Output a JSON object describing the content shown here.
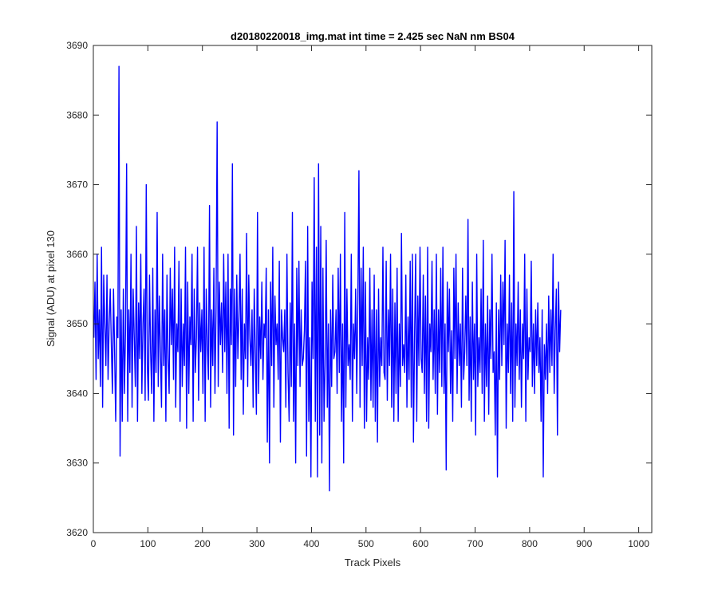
{
  "chart_data": {
    "type": "line",
    "title": "d20180220018_img.mat int time = 2.425 sec  NaN nm BS04",
    "xlabel": "Track Pixels",
    "ylabel": "Signal (ADU) at pixel 130",
    "xlim": [
      0,
      1024
    ],
    "ylim": [
      3620,
      3690
    ],
    "xticks": [
      "0",
      "100",
      "200",
      "300",
      "400",
      "500",
      "600",
      "700",
      "800",
      "900",
      "1000"
    ],
    "yticks": [
      "3620",
      "3630",
      "3640",
      "3650",
      "3660",
      "3670",
      "3680",
      "3690"
    ],
    "grid": false,
    "legend": "none",
    "series": [
      {
        "color": "#0000ff",
        "x_start": 1,
        "x_step": 2,
        "values": [
          3648,
          3656,
          3642,
          3660,
          3645,
          3652,
          3641,
          3661,
          3638,
          3657,
          3650,
          3644,
          3657,
          3642,
          3650,
          3655,
          3647,
          3640,
          3655,
          3646,
          3636,
          3651,
          3648,
          3687,
          3631,
          3652,
          3636,
          3655,
          3640,
          3649,
          3673,
          3636,
          3652,
          3643,
          3660,
          3638,
          3655,
          3648,
          3641,
          3664,
          3636,
          3653,
          3645,
          3660,
          3640,
          3650,
          3655,
          3639,
          3670,
          3644,
          3639,
          3657,
          3646,
          3640,
          3658,
          3636,
          3652,
          3643,
          3666,
          3641,
          3654,
          3646,
          3638,
          3660,
          3644,
          3652,
          3636,
          3657,
          3645,
          3640,
          3658,
          3647,
          3655,
          3642,
          3661,
          3638,
          3650,
          3646,
          3659,
          3636,
          3655,
          3641,
          3650,
          3644,
          3661,
          3635,
          3656,
          3640,
          3651,
          3647,
          3660,
          3636,
          3655,
          3643,
          3648,
          3661,
          3639,
          3653,
          3646,
          3652,
          3640,
          3661,
          3636,
          3655,
          3647,
          3642,
          3667,
          3638,
          3652,
          3644,
          3658,
          3640,
          3652,
          3679,
          3641,
          3656,
          3647,
          3653,
          3643,
          3660,
          3646,
          3656,
          3640,
          3660,
          3635,
          3655,
          3647,
          3673,
          3634,
          3655,
          3641,
          3657,
          3645,
          3651,
          3660,
          3642,
          3655,
          3637,
          3650,
          3645,
          3663,
          3641,
          3657,
          3648,
          3644,
          3652,
          3638,
          3655,
          3646,
          3637,
          3666,
          3640,
          3651,
          3645,
          3656,
          3642,
          3650,
          3648,
          3658,
          3633,
          3652,
          3630,
          3656,
          3644,
          3661,
          3638,
          3654,
          3647,
          3650,
          3642,
          3659,
          3633,
          3652,
          3648,
          3646,
          3652,
          3638,
          3660,
          3643,
          3636,
          3653,
          3641,
          3666,
          3636,
          3650,
          3630,
          3658,
          3644,
          3659,
          3641,
          3652,
          3644,
          3645,
          3649,
          3659,
          3631,
          3664,
          3636,
          3648,
          3628,
          3656,
          3645,
          3671,
          3636,
          3661,
          3628,
          3673,
          3634,
          3664,
          3630,
          3658,
          3636,
          3644,
          3662,
          3638,
          3650,
          3626,
          3652,
          3641,
          3657,
          3645,
          3646,
          3652,
          3640,
          3658,
          3643,
          3660,
          3636,
          3650,
          3630,
          3666,
          3638,
          3655,
          3644,
          3647,
          3642,
          3660,
          3636,
          3650,
          3645,
          3655,
          3640,
          3653,
          3672,
          3638,
          3658,
          3644,
          3661,
          3635,
          3656,
          3636,
          3648,
          3642,
          3658,
          3639,
          3652,
          3638,
          3657,
          3636,
          3652,
          3633,
          3655,
          3641,
          3648,
          3644,
          3661,
          3643,
          3642,
          3659,
          3639,
          3652,
          3644,
          3660,
          3638,
          3655,
          3636,
          3653,
          3640,
          3658,
          3636,
          3650,
          3641,
          3663,
          3644,
          3647,
          3643,
          3657,
          3638,
          3651,
          3642,
          3659,
          3638,
          3660,
          3633,
          3648,
          3660,
          3636,
          3654,
          3644,
          3661,
          3645,
          3643,
          3657,
          3640,
          3654,
          3636,
          3661,
          3635,
          3650,
          3646,
          3659,
          3642,
          3652,
          3640,
          3660,
          3637,
          3652,
          3643,
          3658,
          3641,
          3661,
          3640,
          3650,
          3629,
          3656,
          3646,
          3655,
          3640,
          3649,
          3636,
          3658,
          3645,
          3660,
          3640,
          3653,
          3644,
          3650,
          3638,
          3658,
          3642,
          3646,
          3654,
          3644,
          3665,
          3639,
          3651,
          3636,
          3656,
          3642,
          3650,
          3634,
          3660,
          3641,
          3648,
          3643,
          3655,
          3640,
          3662,
          3636,
          3650,
          3641,
          3654,
          3637,
          3652,
          3645,
          3660,
          3643,
          3646,
          3634,
          3653,
          3628,
          3652,
          3642,
          3657,
          3644,
          3656,
          3647,
          3662,
          3635,
          3650,
          3643,
          3657,
          3640,
          3653,
          3636,
          3669,
          3638,
          3650,
          3644,
          3656,
          3642,
          3652,
          3638,
          3650,
          3645,
          3660,
          3636,
          3655,
          3642,
          3648,
          3646,
          3659,
          3641,
          3650,
          3640,
          3652,
          3644,
          3653,
          3643,
          3648,
          3636,
          3652,
          3628,
          3647,
          3642,
          3650,
          3640,
          3654,
          3643,
          3652,
          3644,
          3660,
          3640,
          3649,
          3655,
          3634,
          3656,
          3646,
          3652
        ]
      }
    ]
  }
}
